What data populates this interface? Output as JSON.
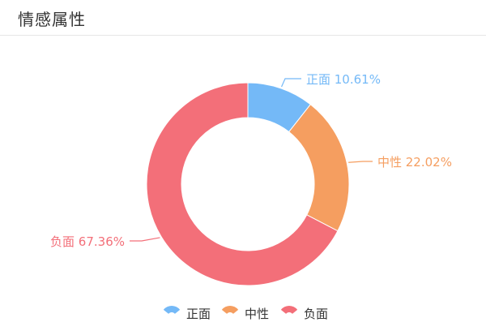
{
  "panel": {
    "title": "情感属性"
  },
  "chart_data": {
    "type": "pie",
    "style": "donut",
    "slices": [
      {
        "name": "正面",
        "value": 10.61,
        "label": "正面 10.61%",
        "color": "#74b9f7"
      },
      {
        "name": "中性",
        "value": 22.02,
        "label": "中性 22.02%",
        "color": "#f59e60"
      },
      {
        "name": "负面",
        "value": 67.36,
        "label": "负面 67.36%",
        "color": "#f36f79"
      }
    ],
    "legend": {
      "placement": "bottom-center",
      "items": [
        "正面",
        "中性",
        "负面"
      ]
    }
  }
}
